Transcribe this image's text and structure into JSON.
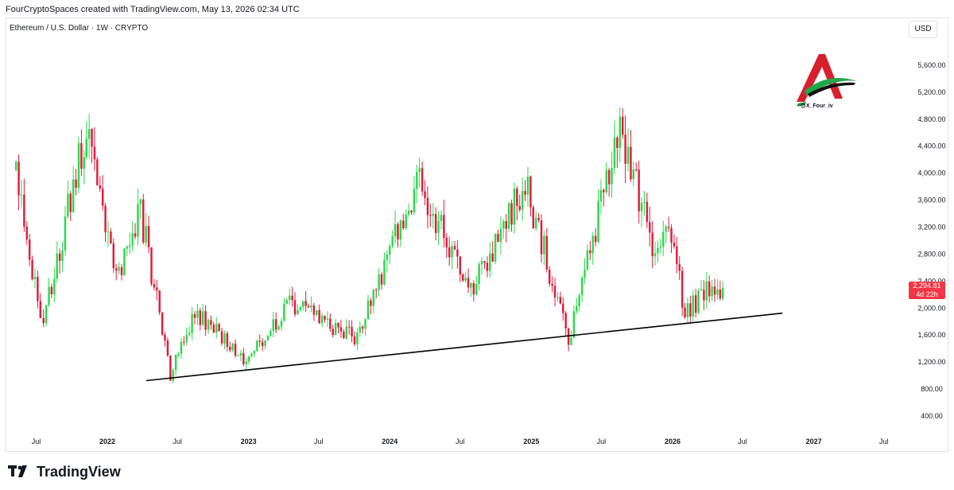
{
  "header": {
    "credit": "FourCryptoSpaces created with TradingView.com, May 13, 2026 02:34 UTC",
    "symbol_line": "Ethereum / U.S. Dollar · 1W · CRYPTO",
    "currency": "USD"
  },
  "watermark": {
    "handle": "@X_Four_iv"
  },
  "price_badge": {
    "price": "2,294.81",
    "countdown": "4d 22h"
  },
  "footer": {
    "brand": "TradingView"
  },
  "colors": {
    "up": "#2bd94a",
    "down": "#e01b3c",
    "trendline": "#000000",
    "badge": "#f23645"
  },
  "chart_data": {
    "type": "candlestick",
    "x_axis_labels": [
      {
        "label": "Jul",
        "date": "2021-07-01"
      },
      {
        "label": "2022",
        "date": "2022-01-01"
      },
      {
        "label": "Jul",
        "date": "2022-07-01"
      },
      {
        "label": "2023",
        "date": "2023-01-01"
      },
      {
        "label": "Jul",
        "date": "2023-07-01"
      },
      {
        "label": "2024",
        "date": "2024-01-01"
      },
      {
        "label": "Jul",
        "date": "2024-07-01"
      },
      {
        "label": "2025",
        "date": "2025-01-01"
      },
      {
        "label": "Jul",
        "date": "2025-07-01"
      },
      {
        "label": "2026",
        "date": "2026-01-01"
      },
      {
        "label": "Jul",
        "date": "2026-07-01"
      },
      {
        "label": "2027",
        "date": "2027-01-01"
      },
      {
        "label": "Jul",
        "date": "2027-07-01"
      }
    ],
    "y_ticks": [
      "400.00",
      "800.00",
      "1,200.00",
      "1,600.00",
      "2,000.00",
      "2,400.00",
      "2,800.00",
      "3,200.00",
      "3,600.00",
      "4,000.00",
      "4,400.00",
      "4,800.00",
      "5,200.00",
      "5,600.00"
    ],
    "ylim": [
      200,
      6000
    ],
    "xlim": [
      "2021-04-15",
      "2027-08-20"
    ],
    "key_prices": [
      {
        "date": "2021-05-10",
        "close": 3900
      },
      {
        "date": "2021-07-20",
        "close": 1800
      },
      {
        "date": "2021-11-08",
        "close": 4700
      },
      {
        "date": "2022-01-24",
        "close": 2400
      },
      {
        "date": "2022-03-28",
        "close": 3450
      },
      {
        "date": "2022-06-13",
        "close": 1000
      },
      {
        "date": "2022-08-15",
        "close": 1950
      },
      {
        "date": "2022-12-26",
        "close": 1200
      },
      {
        "date": "2023-04-17",
        "close": 2050
      },
      {
        "date": "2023-10-09",
        "close": 1560
      },
      {
        "date": "2024-03-11",
        "close": 3900
      },
      {
        "date": "2024-08-05",
        "close": 2300
      },
      {
        "date": "2024-12-16",
        "close": 3900
      },
      {
        "date": "2025-04-07",
        "close": 1500
      },
      {
        "date": "2025-08-18",
        "close": 4700
      },
      {
        "date": "2025-11-17",
        "close": 2800
      },
      {
        "date": "2025-12-22",
        "close": 3200
      },
      {
        "date": "2026-02-02",
        "close": 1950
      },
      {
        "date": "2026-04-20",
        "close": 2350
      },
      {
        "date": "2026-05-11",
        "close": 2294.81
      }
    ],
    "trendline": {
      "start": {
        "date": "2022-04-12",
        "price": 925
      },
      "end": {
        "date": "2026-10-12",
        "price": 1925
      }
    },
    "last_price": 2294.81,
    "grid": false,
    "legend": "none"
  }
}
